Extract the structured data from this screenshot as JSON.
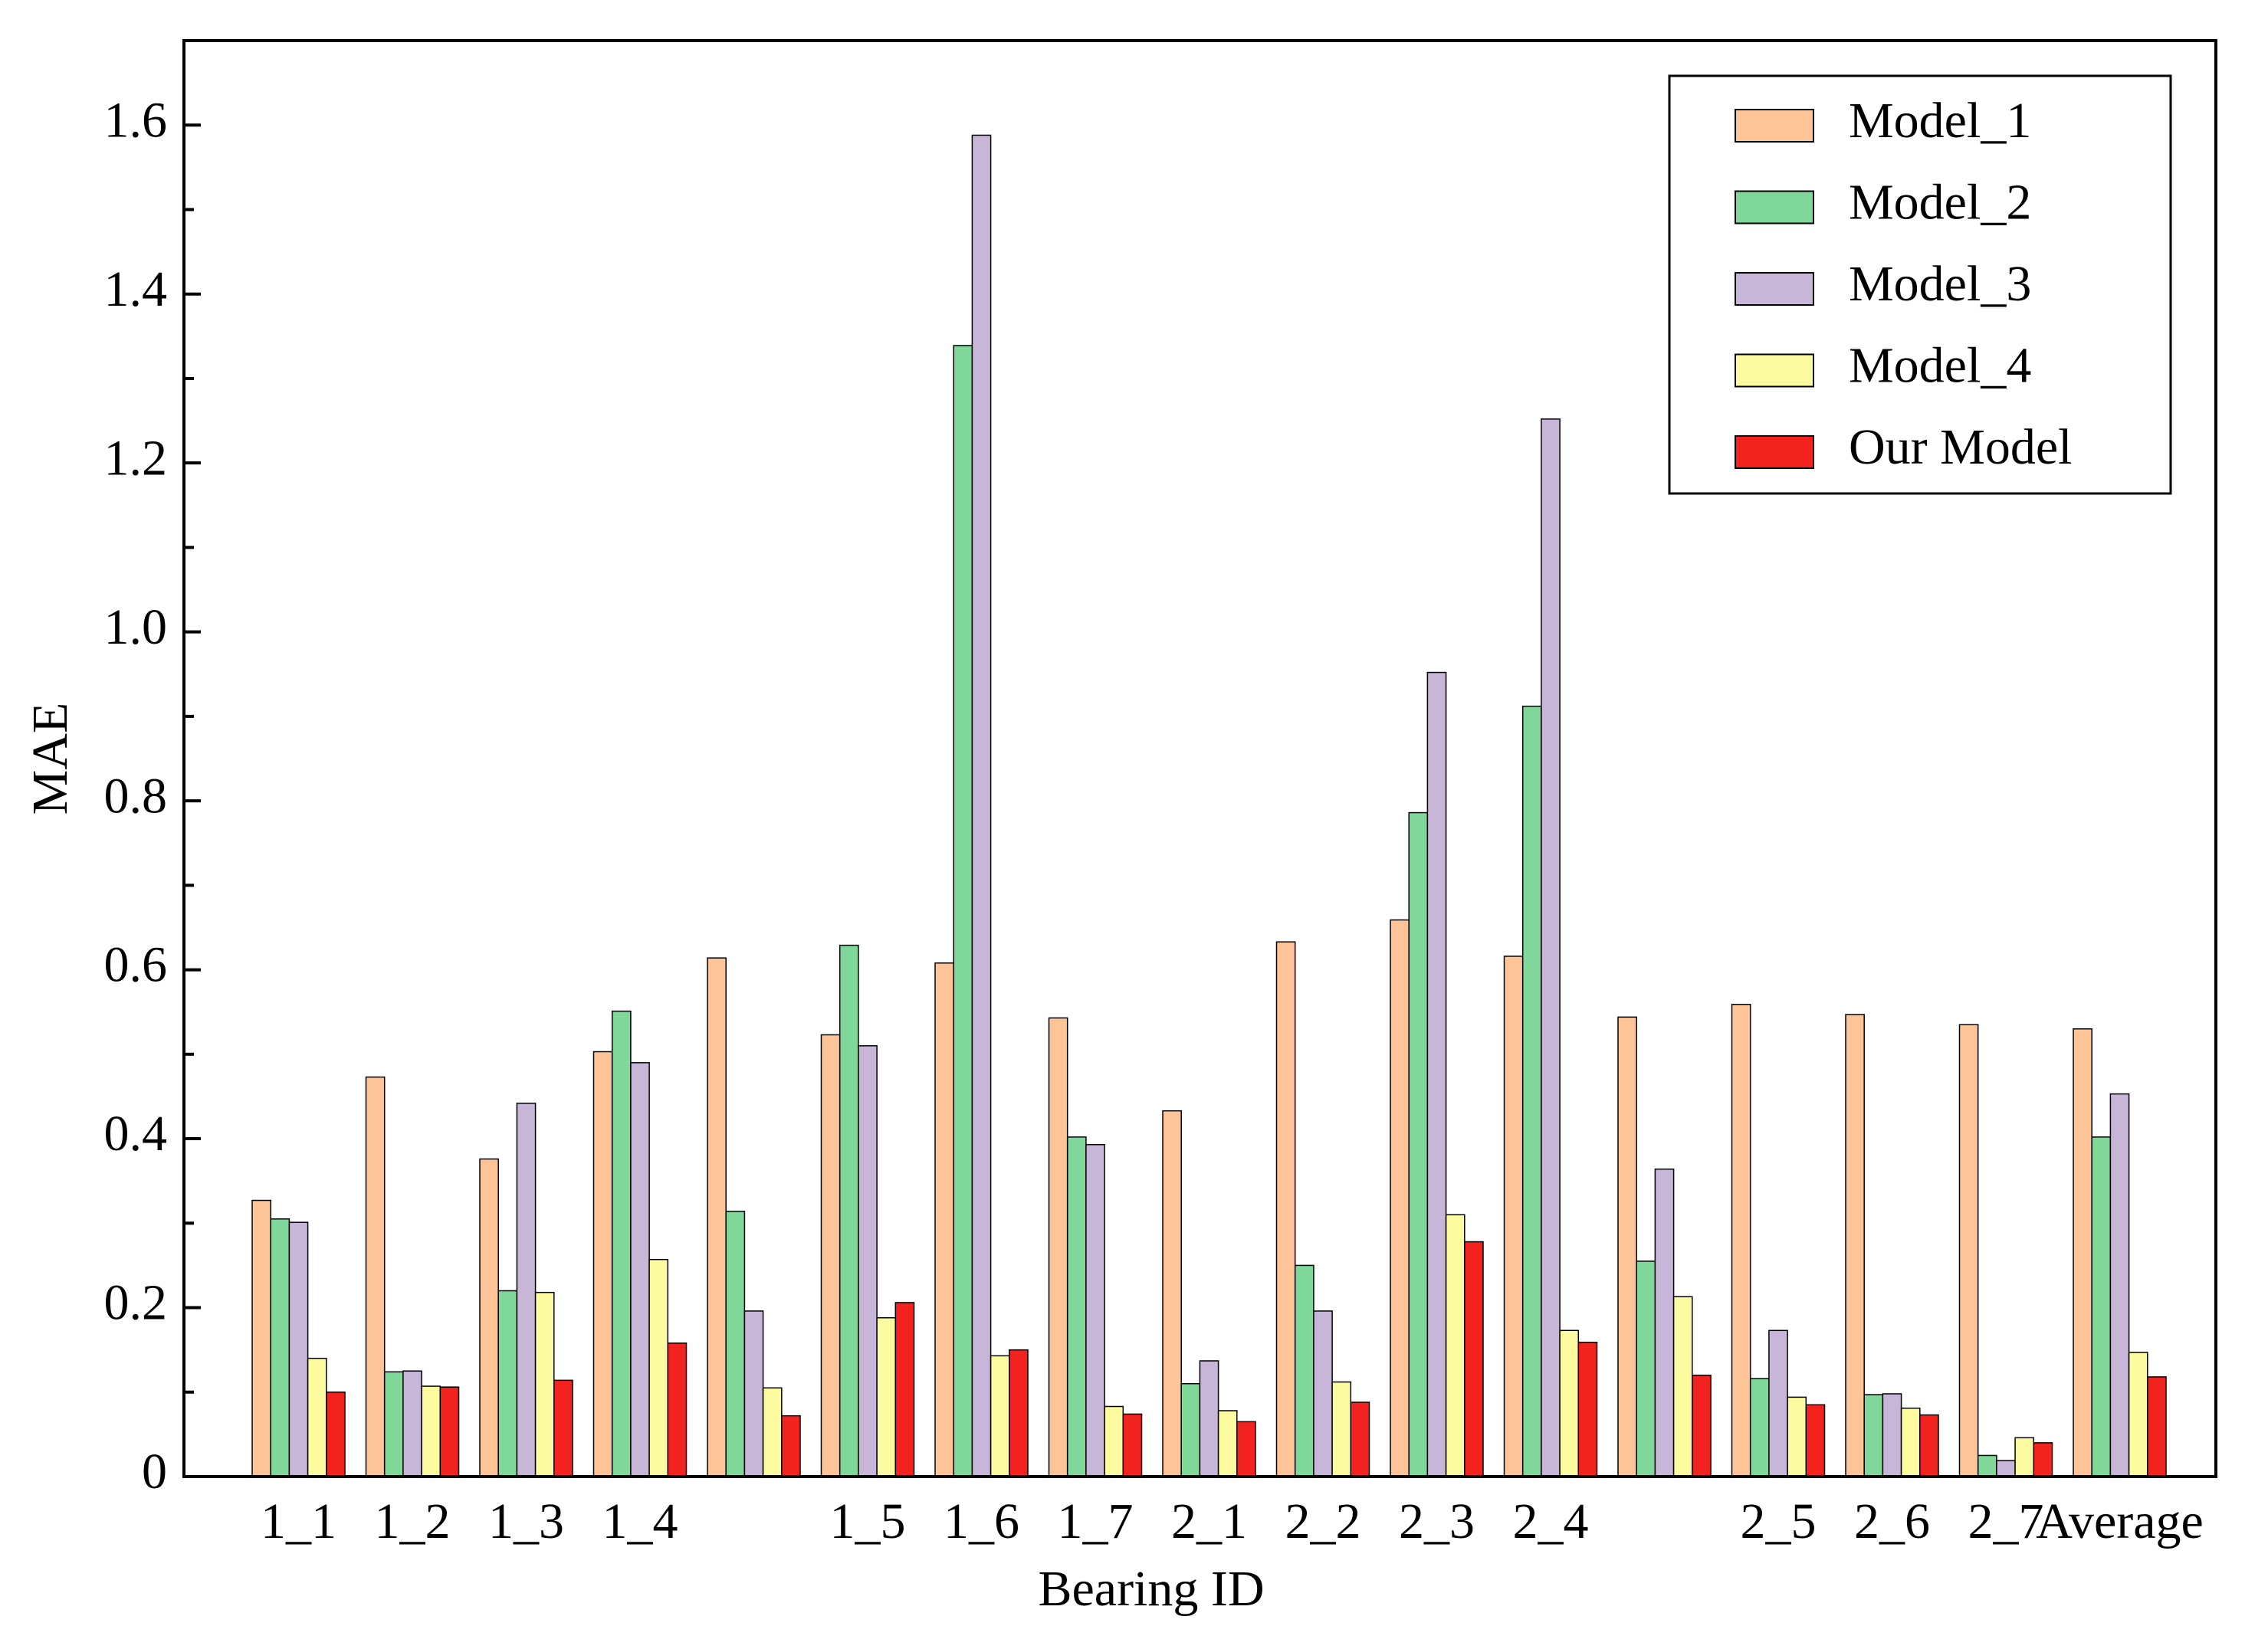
{
  "chart_data": {
    "type": "bar",
    "x_label": "Bearing ID",
    "y_label": "MAE",
    "categories": [
      "1_1",
      "1_2",
      "1_3",
      "1_4",
      null,
      "1_5",
      "1_6",
      "1_7",
      "2_1",
      "2_2",
      "2_3",
      "2_4",
      null,
      "2_5",
      "2_6",
      "2_7",
      "Average"
    ],
    "series": [
      {
        "name": "Model_1",
        "color": "#fdc597",
        "values": [
          0.327,
          0.473,
          0.376,
          0.503,
          0.614,
          0.523,
          0.608,
          0.543,
          0.433,
          0.633,
          0.659,
          0.616,
          0.544,
          0.559,
          0.547,
          0.535,
          0.53
        ]
      },
      {
        "name": "Model_2",
        "color": "#7fd89a",
        "values": [
          0.305,
          0.124,
          0.22,
          0.551,
          0.314,
          0.629,
          1.339,
          0.402,
          0.11,
          0.25,
          0.786,
          0.912,
          0.255,
          0.116,
          0.097,
          0.025,
          0.402
        ]
      },
      {
        "name": "Model_3",
        "color": "#c8b6d9",
        "values": [
          0.301,
          0.125,
          0.442,
          0.49,
          0.196,
          0.51,
          1.588,
          0.393,
          0.137,
          0.196,
          0.952,
          1.252,
          0.364,
          0.173,
          0.098,
          0.019,
          0.453
        ]
      },
      {
        "name": "Model_4",
        "color": "#fdfb9f",
        "values": [
          0.14,
          0.107,
          0.218,
          0.257,
          0.105,
          0.188,
          0.143,
          0.083,
          0.078,
          0.112,
          0.31,
          0.173,
          0.213,
          0.094,
          0.081,
          0.046,
          0.147
        ]
      },
      {
        "name": "Our Model",
        "color": "#f2231f",
        "values": [
          0.1,
          0.106,
          0.114,
          0.158,
          0.072,
          0.206,
          0.15,
          0.074,
          0.065,
          0.088,
          0.278,
          0.159,
          0.12,
          0.085,
          0.073,
          0.04,
          0.118
        ]
      }
    ],
    "ylim": [
      0,
      1.7
    ],
    "yticks": [
      0,
      0.2,
      0.4,
      0.6,
      0.8,
      {
        "value": 1,
        "label": "1.0"
      },
      1.2,
      1.4,
      1.6
    ],
    "legend": "upper right"
  }
}
